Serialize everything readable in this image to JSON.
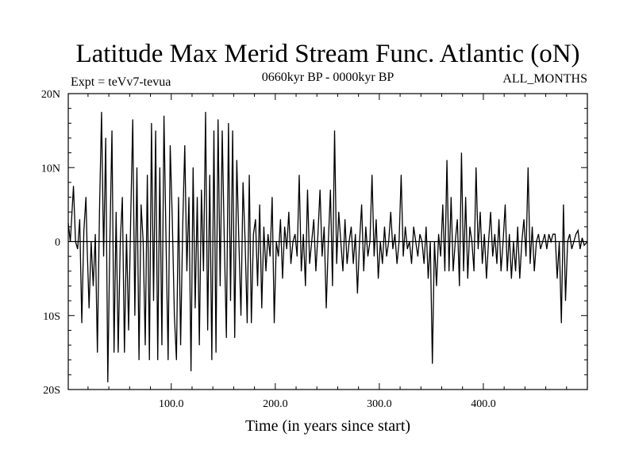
{
  "chart_data": {
    "type": "line",
    "title": "Latitude Max Merid Stream Func. Atlantic (oN)",
    "subtitle_left": "Expt = teVv7-tevua",
    "subtitle_center": "0660kyr BP - 0000kyr BP",
    "subtitle_right": "ALL_MONTHS",
    "xlabel": "Time (in years since start)",
    "ylabel": "",
    "xlim": [
      1,
      500
    ],
    "ylim": [
      -20,
      20
    ],
    "xticks": [
      {
        "value": 100,
        "label": "100.0"
      },
      {
        "value": 200,
        "label": "200.0"
      },
      {
        "value": 300,
        "label": "300.0"
      },
      {
        "value": 400,
        "label": "400.0"
      }
    ],
    "yticks": [
      {
        "value": 20,
        "label": "20N"
      },
      {
        "value": 10,
        "label": "10N"
      },
      {
        "value": 0,
        "label": "0"
      },
      {
        "value": -10,
        "label": "10S"
      },
      {
        "value": -20,
        "label": "20S"
      }
    ],
    "series": [
      {
        "line_color": "#000000",
        "points": [
          [
            1,
            2.5
          ],
          [
            3,
            0
          ],
          [
            6,
            7.5
          ],
          [
            8,
            0
          ],
          [
            10,
            -1
          ],
          [
            12,
            3
          ],
          [
            14,
            -11
          ],
          [
            16,
            1.5
          ],
          [
            18,
            6
          ],
          [
            19,
            0
          ],
          [
            21,
            -9
          ],
          [
            23,
            0
          ],
          [
            25,
            -6
          ],
          [
            27,
            1
          ],
          [
            29,
            -15
          ],
          [
            31,
            4
          ],
          [
            33,
            17.5
          ],
          [
            35,
            -2
          ],
          [
            37,
            14
          ],
          [
            39,
            -19
          ],
          [
            41,
            0
          ],
          [
            43,
            15
          ],
          [
            45,
            -15
          ],
          [
            47,
            4
          ],
          [
            49,
            -15
          ],
          [
            51,
            0
          ],
          [
            53,
            6
          ],
          [
            55,
            -15
          ],
          [
            57,
            1
          ],
          [
            59,
            -12
          ],
          [
            61,
            3
          ],
          [
            63,
            16.5
          ],
          [
            65,
            -10
          ],
          [
            67,
            10
          ],
          [
            69,
            -16
          ],
          [
            71,
            5
          ],
          [
            73,
            0
          ],
          [
            75,
            -14
          ],
          [
            77,
            9
          ],
          [
            79,
            -16
          ],
          [
            81,
            16
          ],
          [
            83,
            -8
          ],
          [
            85,
            15
          ],
          [
            87,
            -16
          ],
          [
            89,
            10
          ],
          [
            91,
            -14
          ],
          [
            93,
            17
          ],
          [
            95,
            0
          ],
          [
            97,
            -16
          ],
          [
            99,
            13
          ],
          [
            101,
            3
          ],
          [
            103,
            -10
          ],
          [
            105,
            -16
          ],
          [
            107,
            6
          ],
          [
            109,
            -14
          ],
          [
            111,
            2
          ],
          [
            113,
            13
          ],
          [
            115,
            -4
          ],
          [
            117,
            6
          ],
          [
            119,
            -17.5
          ],
          [
            121,
            10
          ],
          [
            123,
            -9
          ],
          [
            125,
            6
          ],
          [
            127,
            -14
          ],
          [
            129,
            7
          ],
          [
            131,
            -4
          ],
          [
            133,
            17.5
          ],
          [
            135,
            -12
          ],
          [
            137,
            9
          ],
          [
            139,
            -16
          ],
          [
            141,
            15
          ],
          [
            143,
            -15
          ],
          [
            145,
            16.5
          ],
          [
            147,
            -6
          ],
          [
            149,
            15
          ],
          [
            151,
            0
          ],
          [
            153,
            -13
          ],
          [
            155,
            16
          ],
          [
            157,
            -8
          ],
          [
            159,
            15
          ],
          [
            161,
            -13
          ],
          [
            163,
            11
          ],
          [
            165,
            0
          ],
          [
            167,
            -10
          ],
          [
            169,
            8
          ],
          [
            171,
            0
          ],
          [
            173,
            -11
          ],
          [
            175,
            9
          ],
          [
            177,
            -11
          ],
          [
            179,
            1
          ],
          [
            181,
            3
          ],
          [
            183,
            -6
          ],
          [
            185,
            5
          ],
          [
            187,
            -9
          ],
          [
            189,
            2
          ],
          [
            191,
            -4
          ],
          [
            193,
            1
          ],
          [
            195,
            -2
          ],
          [
            197,
            6
          ],
          [
            199,
            -11
          ],
          [
            201,
            0
          ],
          [
            203,
            -2
          ],
          [
            205,
            3
          ],
          [
            207,
            -5
          ],
          [
            209,
            2
          ],
          [
            211,
            -1
          ],
          [
            213,
            4
          ],
          [
            215,
            -3
          ],
          [
            217,
            0
          ],
          [
            219,
            1
          ],
          [
            221,
            -2
          ],
          [
            223,
            9
          ],
          [
            225,
            -4
          ],
          [
            227,
            1
          ],
          [
            229,
            -6
          ],
          [
            231,
            7
          ],
          [
            233,
            -3
          ],
          [
            235,
            0
          ],
          [
            237,
            3
          ],
          [
            239,
            -4
          ],
          [
            241,
            1
          ],
          [
            243,
            7
          ],
          [
            245,
            -2
          ],
          [
            247,
            2
          ],
          [
            249,
            -9
          ],
          [
            251,
            0
          ],
          [
            253,
            7
          ],
          [
            255,
            -6
          ],
          [
            257,
            15
          ],
          [
            259,
            -3
          ],
          [
            261,
            4
          ],
          [
            263,
            0
          ],
          [
            265,
            -4
          ],
          [
            267,
            3
          ],
          [
            269,
            -3
          ],
          [
            271,
            0
          ],
          [
            273,
            2
          ],
          [
            275,
            -3
          ],
          [
            277,
            1
          ],
          [
            279,
            -7
          ],
          [
            281,
            0
          ],
          [
            283,
            5
          ],
          [
            285,
            -4
          ],
          [
            287,
            2
          ],
          [
            289,
            -2
          ],
          [
            291,
            0
          ],
          [
            293,
            9
          ],
          [
            295,
            -2
          ],
          [
            297,
            3
          ],
          [
            299,
            -5
          ],
          [
            301,
            0
          ],
          [
            303,
            -3
          ],
          [
            305,
            2
          ],
          [
            307,
            -2
          ],
          [
            309,
            0
          ],
          [
            311,
            4
          ],
          [
            313,
            -1
          ],
          [
            315,
            1
          ],
          [
            317,
            -3
          ],
          [
            319,
            0
          ],
          [
            321,
            9
          ],
          [
            323,
            -2
          ],
          [
            325,
            2
          ],
          [
            327,
            -1
          ],
          [
            329,
            0
          ],
          [
            331,
            -3
          ],
          [
            333,
            2
          ],
          [
            335,
            0
          ],
          [
            337,
            -2
          ],
          [
            339,
            1
          ],
          [
            341,
            0
          ],
          [
            343,
            -3
          ],
          [
            345,
            2
          ],
          [
            347,
            -5
          ],
          [
            349,
            0
          ],
          [
            351,
            -16.5
          ],
          [
            353,
            0
          ],
          [
            355,
            -6
          ],
          [
            357,
            1
          ],
          [
            359,
            -2
          ],
          [
            361,
            5
          ],
          [
            363,
            -4
          ],
          [
            365,
            11
          ],
          [
            367,
            -4
          ],
          [
            369,
            6
          ],
          [
            371,
            -4
          ],
          [
            373,
            0
          ],
          [
            375,
            3
          ],
          [
            377,
            -6
          ],
          [
            379,
            12
          ],
          [
            381,
            -4
          ],
          [
            383,
            6
          ],
          [
            385,
            -5
          ],
          [
            387,
            2
          ],
          [
            389,
            0
          ],
          [
            391,
            -4
          ],
          [
            393,
            10
          ],
          [
            395,
            -1
          ],
          [
            397,
            4
          ],
          [
            399,
            -3
          ],
          [
            401,
            1
          ],
          [
            403,
            -5
          ],
          [
            405,
            0
          ],
          [
            407,
            4
          ],
          [
            409,
            -2
          ],
          [
            411,
            1
          ],
          [
            413,
            -3
          ],
          [
            415,
            3
          ],
          [
            417,
            -4
          ],
          [
            419,
            0
          ],
          [
            421,
            5
          ],
          [
            423,
            -4
          ],
          [
            425,
            1
          ],
          [
            427,
            -5
          ],
          [
            429,
            0
          ],
          [
            431,
            -4
          ],
          [
            433,
            2
          ],
          [
            435,
            -5
          ],
          [
            437,
            0
          ],
          [
            439,
            3
          ],
          [
            441,
            -2
          ],
          [
            443,
            10
          ],
          [
            445,
            -3
          ],
          [
            447,
            2
          ],
          [
            449,
            -4
          ],
          [
            451,
            0
          ],
          [
            453,
            1
          ],
          [
            455,
            -1
          ],
          [
            457,
            0
          ],
          [
            459,
            1
          ],
          [
            461,
            -1
          ],
          [
            463,
            1
          ],
          [
            465,
            0
          ],
          [
            467,
            1
          ],
          [
            469,
            1
          ],
          [
            471,
            -5
          ],
          [
            473,
            0
          ],
          [
            475,
            -11
          ],
          [
            477,
            5
          ],
          [
            479,
            -8
          ],
          [
            481,
            0
          ],
          [
            483,
            1
          ],
          [
            485,
            -1
          ],
          [
            487,
            0
          ],
          [
            489,
            1
          ],
          [
            491,
            1.5
          ],
          [
            493,
            -1
          ],
          [
            495,
            0.5
          ],
          [
            497,
            -0.5
          ],
          [
            500,
            0
          ]
        ]
      }
    ],
    "grid": false,
    "legend": "none"
  }
}
